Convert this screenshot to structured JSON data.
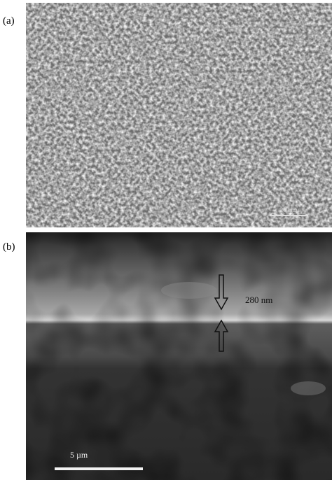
{
  "panels": [
    {
      "label": "(a)",
      "scale_bar": "200nm"
    },
    {
      "label": "(b)",
      "thickness": "280 nm",
      "scale_bar": "5 µm"
    }
  ]
}
